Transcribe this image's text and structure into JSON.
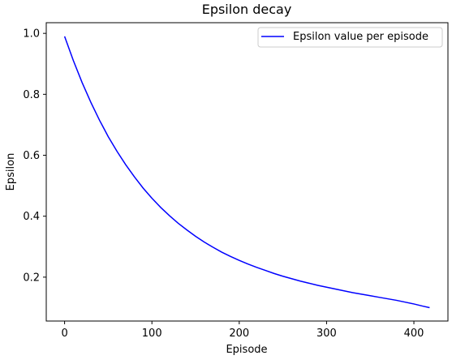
{
  "chart_data": {
    "type": "line",
    "title": "Epsilon decay",
    "xlabel": "Episode",
    "ylabel": "Epsilon",
    "xlim": [
      -21,
      439
    ],
    "ylim": [
      0.056,
      1.035
    ],
    "xticks": [
      0,
      100,
      200,
      300,
      400
    ],
    "xtick_labels": [
      "0",
      "100",
      "200",
      "300",
      "400"
    ],
    "yticks": [
      0.2,
      0.4,
      0.6,
      0.8,
      1.0
    ],
    "ytick_labels": [
      "0.2",
      "0.4",
      "0.6",
      "0.8",
      "1.0"
    ],
    "grid": false,
    "legend_position": "upper right",
    "series": [
      {
        "name": "Epsilon value per episode",
        "color": "#0000ff",
        "x": [
          0,
          10,
          20,
          30,
          40,
          50,
          60,
          70,
          80,
          90,
          100,
          110,
          120,
          130,
          140,
          150,
          160,
          170,
          180,
          190,
          200,
          210,
          220,
          230,
          240,
          250,
          260,
          270,
          280,
          290,
          300,
          310,
          320,
          330,
          340,
          350,
          360,
          370,
          380,
          390,
          400,
          410,
          418
        ],
        "y": [
          0.99,
          0.911,
          0.839,
          0.774,
          0.715,
          0.661,
          0.613,
          0.569,
          0.529,
          0.492,
          0.459,
          0.429,
          0.402,
          0.377,
          0.355,
          0.334,
          0.315,
          0.298,
          0.282,
          0.268,
          0.255,
          0.243,
          0.232,
          0.222,
          0.212,
          0.203,
          0.195,
          0.187,
          0.18,
          0.173,
          0.167,
          0.161,
          0.155,
          0.149,
          0.144,
          0.139,
          0.134,
          0.129,
          0.124,
          0.118,
          0.112,
          0.105,
          0.1
        ]
      }
    ]
  }
}
